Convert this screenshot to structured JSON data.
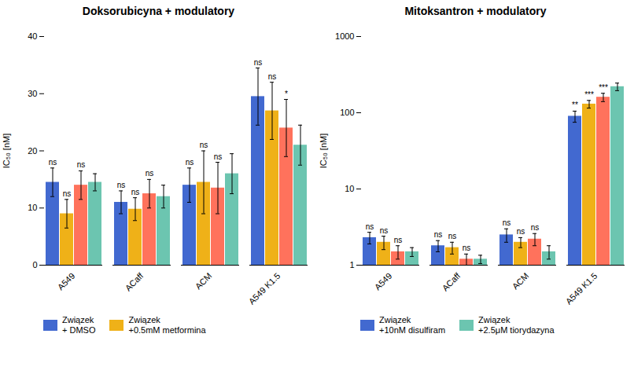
{
  "chart_data": [
    {
      "type": "bar",
      "title": "Doksorubicyna + modulatory",
      "categories": [
        "A549",
        "ACaff",
        "ACM",
        "A549 K1.5"
      ],
      "y_label": "IC₅₀ [nM]",
      "ylim": [
        0,
        40
      ],
      "yticks": [
        0,
        10,
        20,
        30,
        40
      ],
      "grid": false,
      "legend": "bottom",
      "series": [
        {
          "name": "Związek\n+ DMSO",
          "values": [
            14.5,
            11.0,
            14.0,
            29.5
          ],
          "errors": [
            2.5,
            2.0,
            3.0,
            5.0
          ],
          "sig_labels": [
            "ns",
            "ns",
            "ns",
            "ns"
          ]
        },
        {
          "name": "Związek\n+0.5mM metformina",
          "values": [
            9.0,
            9.8,
            14.5,
            27.0
          ],
          "errors": [
            2.5,
            2.0,
            5.5,
            5.0
          ],
          "sig_labels": [
            "ns",
            "ns",
            "ns",
            "ns"
          ]
        },
        {
          "values": [
            14.0,
            12.5,
            13.5,
            24.0
          ],
          "errors": [
            2.5,
            2.5,
            4.5,
            5.0
          ],
          "sig_labels": [
            "ns",
            "ns",
            "ns",
            "*"
          ]
        },
        {
          "values": [
            14.5,
            12.0,
            16.0,
            21.0
          ],
          "errors": [
            1.5,
            2.0,
            3.5,
            3.5
          ]
        }
      ]
    },
    {
      "type": "bar",
      "title": "Mitoksantron + modulatory",
      "categories": [
        "A549",
        "ACaff",
        "ACM",
        "A549 K1.5"
      ],
      "y_label": "IC₅₀ [nM]",
      "log": "y",
      "ylim": [
        1,
        1000
      ],
      "yticks": [
        1,
        10,
        100,
        1000
      ],
      "grid": false,
      "legend": "bottom",
      "series": [
        {
          "name": "Związek\n+10nM disulfiram",
          "values": [
            2.3,
            1.8,
            2.5,
            90.0
          ],
          "errors": [
            0.4,
            0.3,
            0.5,
            15.0
          ],
          "sig_labels": [
            "ns",
            "ns",
            "ns",
            "**"
          ]
        },
        {
          "values": [
            2.0,
            1.7,
            2.0,
            130.0
          ],
          "errors": [
            0.4,
            0.3,
            0.3,
            15.0
          ],
          "sig_labels": [
            "ns",
            "ns",
            "ns",
            "***"
          ]
        },
        {
          "values": [
            1.5,
            1.2,
            2.2,
            160.0
          ],
          "errors": [
            0.3,
            0.2,
            0.4,
            20.0
          ],
          "sig_labels": [
            "ns",
            "ns",
            "ns",
            "***"
          ]
        },
        {
          "name": "Związek\n+2.5μM tiorydazyna",
          "values": [
            1.5,
            1.2,
            1.5,
            220.0
          ],
          "errors": [
            0.2,
            0.15,
            0.3,
            25.0
          ]
        }
      ]
    }
  ]
}
